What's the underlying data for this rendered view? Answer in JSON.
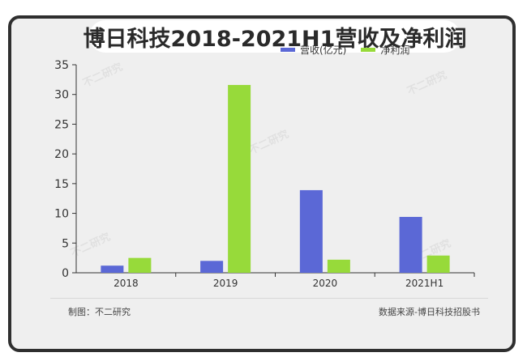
{
  "title": "博日科技2018-2021H1营收及净利润",
  "footer": {
    "left": "制图：不二研究",
    "right": "数据来源-博日科技招股书"
  },
  "watermark": "不二研究",
  "colors": {
    "revenue": "#5b68d6",
    "profit": "#97da3a",
    "axis": "#333333",
    "frame": "#2f2f2f",
    "background": "#efefef"
  },
  "chart_data": {
    "type": "bar",
    "categories": [
      "2018",
      "2019",
      "2020",
      "2021H1"
    ],
    "series": [
      {
        "name": "营收(亿元)",
        "values": [
          1.2,
          2.0,
          13.9,
          9.4
        ]
      },
      {
        "name": "净利润",
        "values": [
          2.5,
          31.6,
          2.2,
          2.9
        ]
      }
    ],
    "yticks": [
      0,
      5,
      10,
      15,
      20,
      25,
      30,
      35
    ],
    "ylim": [
      0,
      35
    ],
    "legend": "top-right",
    "grid": false
  }
}
